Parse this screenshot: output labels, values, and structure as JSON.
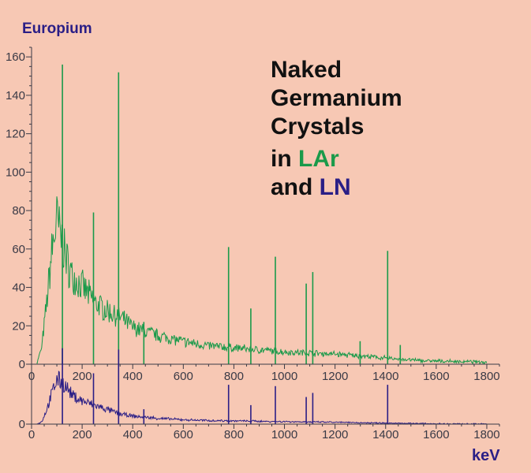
{
  "label_europium": "Europium",
  "label_kev": "keV",
  "title": {
    "line1": "Naked",
    "line2": "Germanium",
    "line3": "Crystals",
    "line4_prefix": "in ",
    "line4_highlight": "LAr",
    "line5_prefix": "and ",
    "line5_highlight": "LN"
  },
  "colors": {
    "background": "#f7c8b4",
    "lar": "#1a9a4a",
    "ln": "#2a1e86",
    "axis": "#3a3a46"
  },
  "chart_data": [
    {
      "type": "line",
      "panel": "top",
      "series": [
        {
          "name": "LAr"
        }
      ],
      "xlim": [
        0,
        1850
      ],
      "ylim": [
        0,
        165
      ],
      "grid": false,
      "x_ticks": [
        0,
        200,
        400,
        600,
        800,
        1000,
        1200,
        1400,
        1600,
        1800
      ],
      "y_ticks": [
        0,
        20,
        40,
        60,
        80,
        100,
        120,
        140,
        160
      ],
      "continuum": {
        "x": [
          20,
          40,
          60,
          80,
          100,
          120,
          140,
          160,
          200,
          250,
          300,
          350,
          400,
          500,
          600,
          700,
          800,
          900,
          1000,
          1100,
          1200,
          1300,
          1400,
          1500,
          1600,
          1800
        ],
        "y": [
          0,
          8,
          30,
          55,
          70,
          60,
          50,
          43,
          38,
          30,
          26,
          23,
          18,
          14,
          11,
          9,
          8,
          7,
          6,
          5.5,
          5,
          4,
          3,
          2,
          1.5,
          1
        ]
      },
      "peaks": {
        "x": [
          122,
          245,
          344,
          444,
          779,
          867,
          964,
          1086,
          1112,
          1299,
          1408,
          1458
        ],
        "y": [
          156,
          79,
          152,
          22,
          61,
          29,
          56,
          42,
          48,
          12,
          59,
          10
        ]
      }
    },
    {
      "type": "line",
      "panel": "bottom",
      "series": [
        {
          "name": "LN"
        }
      ],
      "xlim": [
        0,
        1850
      ],
      "grid": false,
      "x_ticks": [
        0,
        200,
        400,
        600,
        800,
        1000,
        1200,
        1400,
        1600,
        1800
      ],
      "y_ticks": [
        0
      ],
      "continuum": {
        "x": [
          20,
          40,
          60,
          80,
          100,
          120,
          140,
          160,
          200,
          250,
          300,
          350,
          400,
          500,
          600,
          700,
          800,
          900,
          1000,
          1100,
          1200,
          1300,
          1400,
          1500,
          1600,
          1800
        ],
        "y": [
          0,
          3,
          20,
          42,
          62,
          58,
          50,
          40,
          32,
          26,
          20,
          14,
          11,
          8,
          6,
          5,
          4.5,
          4,
          3.5,
          3,
          2.5,
          2,
          1.5,
          1,
          0.5,
          0.3
        ]
      },
      "peaks": {
        "x": [
          122,
          245,
          344,
          444,
          779,
          867,
          964,
          1086,
          1112,
          1408
        ],
        "y": [
          112,
          75,
          110,
          22,
          58,
          28,
          56,
          40,
          46,
          58
        ]
      }
    }
  ]
}
